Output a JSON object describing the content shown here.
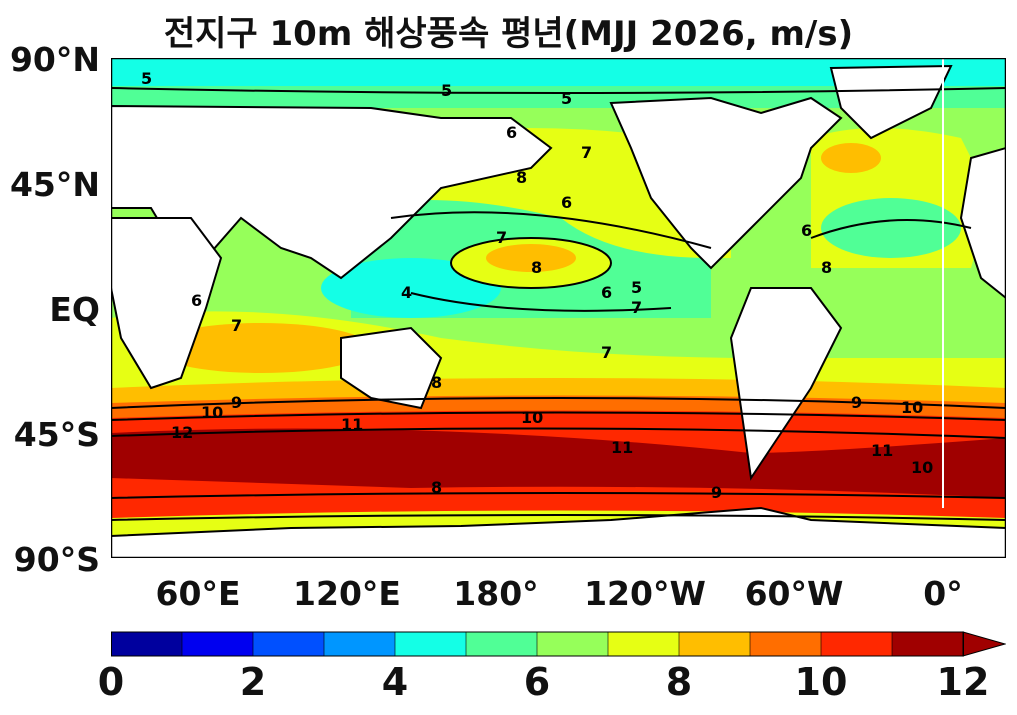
{
  "title": "전지구 10m 해상풍속 평년(MJJ 2026, m/s)",
  "axes": {
    "y_ticks": [
      "90°N",
      "45°N",
      "EQ",
      "45°S",
      "90°S"
    ],
    "x_ticks": [
      "60°E",
      "120°E",
      "180°",
      "120°W",
      "60°W",
      "0°"
    ]
  },
  "colorbar": {
    "tick_labels": [
      "0",
      "2",
      "4",
      "6",
      "8",
      "10",
      "12"
    ],
    "levels": [
      0,
      1,
      2,
      3,
      4,
      5,
      6,
      7,
      8,
      9,
      10,
      11,
      12
    ],
    "colors": [
      "#00009e",
      "#0000f0",
      "#0050ff",
      "#0096ff",
      "#14ffe6",
      "#50ff96",
      "#96ff5a",
      "#e6ff14",
      "#ffbe00",
      "#ff6e00",
      "#ff2800",
      "#a00000"
    ],
    "extend": "max"
  },
  "contour_labels": [
    "5",
    "5",
    "5",
    "6",
    "7",
    "6",
    "7",
    "8",
    "8",
    "6",
    "7",
    "5",
    "4",
    "6",
    "7",
    "8",
    "9",
    "10",
    "11",
    "12",
    "11",
    "10",
    "9",
    "8",
    "7",
    "6",
    "8",
    "9",
    "10",
    "11",
    "10"
  ]
}
